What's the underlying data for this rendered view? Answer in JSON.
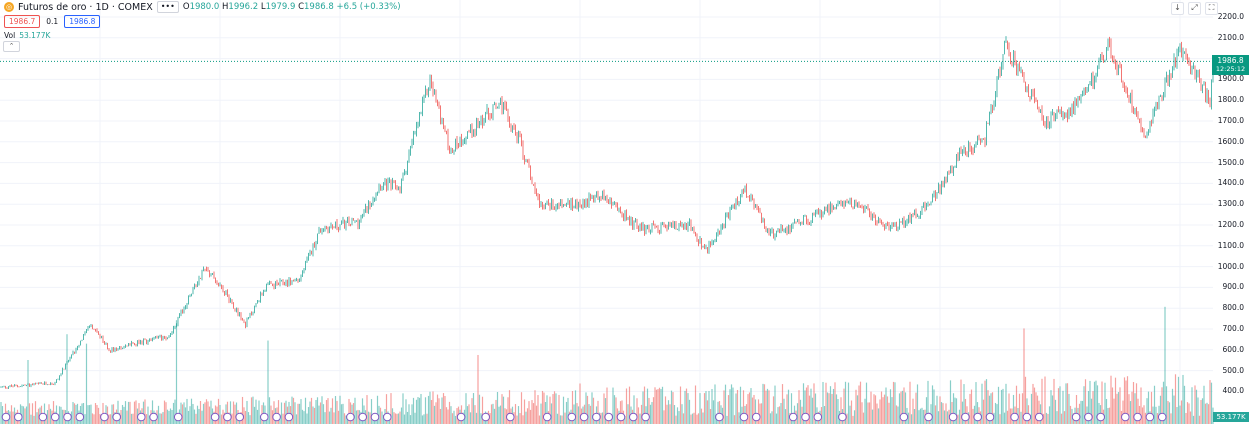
{
  "header": {
    "symbol_title": "Futuros de oro · 1D · COMEX",
    "symbol_icon": "gold-coin-icon",
    "more_label": "•••",
    "open_label": "O",
    "open": "1980.0",
    "high_label": "H",
    "high": "1996.2",
    "low_label": "L",
    "low": "1979.9",
    "close_label": "C",
    "close": "1986.8",
    "change": "+6.5 (+0.33%)",
    "sell_price": "1986.7",
    "spread": "0.1",
    "buy_price": "1986.8"
  },
  "volume_legend": {
    "label": "Vol",
    "value": "53.177K"
  },
  "toolbar": {
    "down_label": "↓",
    "fullscreen_label": "⤢",
    "settings_label": "⛶"
  },
  "price_tag": {
    "price": "1986.8",
    "time": "12:25:12"
  },
  "volume_tag": "53.177K",
  "colors": {
    "up": "#26a69a",
    "down": "#ef5350",
    "last_price": "#089981",
    "grid": "#f0f3fa"
  },
  "chart_data": {
    "type": "candlestick",
    "title": "Futuros de oro · 1D · COMEX",
    "ylabel": "",
    "ylim": [
      360,
      2260
    ],
    "y_ticks": [
      400,
      500,
      600,
      700,
      800,
      900,
      1000,
      1100,
      1200,
      1300,
      1400,
      1500,
      1600,
      1700,
      1800,
      1900,
      2000,
      2100,
      2200
    ],
    "y_tick_labels": [
      "400.0",
      "500.0",
      "600.0",
      "700.0",
      "800.0",
      "900.0",
      "1000.0",
      "1100.0",
      "1200.0",
      "1300.0",
      "1400.0",
      "1500.0",
      "1600.0",
      "1700.0",
      "1800.0",
      "1900.0",
      "2000.0",
      "2100.0",
      "2200.0"
    ],
    "last_price": 1986.8,
    "price_path_approx": [
      [
        0,
        420
      ],
      [
        55,
        440
      ],
      [
        90,
        720
      ],
      [
        110,
        600
      ],
      [
        170,
        670
      ],
      [
        205,
        1000
      ],
      [
        225,
        880
      ],
      [
        245,
        720
      ],
      [
        265,
        900
      ],
      [
        300,
        940
      ],
      [
        320,
        1180
      ],
      [
        360,
        1220
      ],
      [
        380,
        1400
      ],
      [
        400,
        1380
      ],
      [
        430,
        1900
      ],
      [
        450,
        1560
      ],
      [
        500,
        1790
      ],
      [
        520,
        1600
      ],
      [
        540,
        1300
      ],
      [
        580,
        1300
      ],
      [
        600,
        1350
      ],
      [
        640,
        1180
      ],
      [
        690,
        1200
      ],
      [
        705,
        1070
      ],
      [
        745,
        1370
      ],
      [
        770,
        1150
      ],
      [
        850,
        1320
      ],
      [
        890,
        1180
      ],
      [
        930,
        1300
      ],
      [
        960,
        1540
      ],
      [
        985,
        1620
      ],
      [
        1005,
        2060
      ],
      [
        1045,
        1690
      ],
      [
        1080,
        1780
      ],
      [
        1108,
        2060
      ],
      [
        1145,
        1640
      ],
      [
        1180,
        2050
      ],
      [
        1210,
        1800
      ],
      [
        1215,
        1987
      ]
    ],
    "volume_max": 760,
    "volume_last": 53.177
  }
}
